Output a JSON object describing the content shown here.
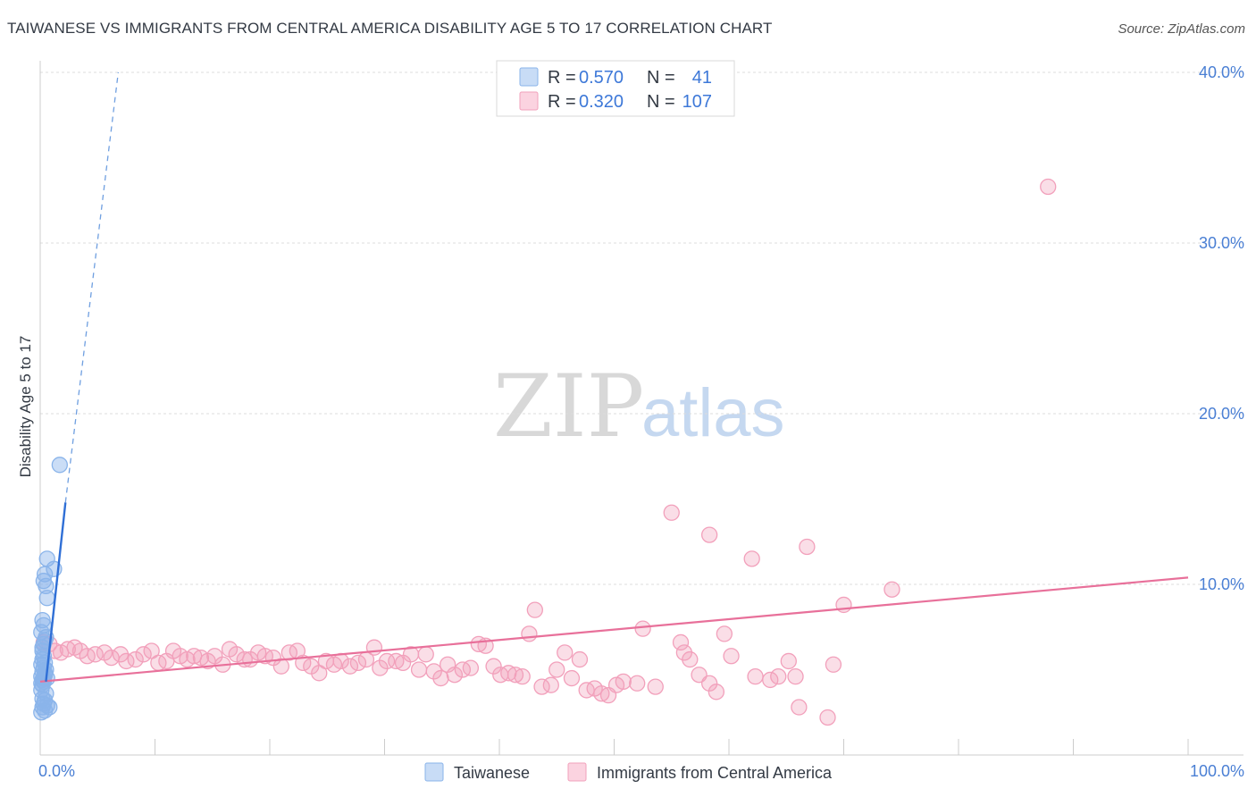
{
  "title": "TAIWANESE VS IMMIGRANTS FROM CENTRAL AMERICA DISABILITY AGE 5 TO 17 CORRELATION CHART",
  "source": "Source: ZipAtlas.com",
  "watermark": {
    "zip": "ZIP",
    "atlas": "atlas"
  },
  "legend": {
    "rows": [
      {
        "r_label": "R =",
        "r_value": "0.570",
        "n_label": "N =",
        "n_value": "41",
        "color": "#8ab4ea"
      },
      {
        "r_label": "R =",
        "r_value": "0.320",
        "n_label": "N =",
        "n_value": "107",
        "color": "#f2a0bb"
      }
    ]
  },
  "chart_data": {
    "type": "scatter",
    "title": "TAIWANESE VS IMMIGRANTS FROM CENTRAL AMERICA DISABILITY AGE 5 TO 17 CORRELATION CHART",
    "xlabel": "",
    "ylabel": "Disability Age 5 to 17",
    "xlim": [
      0,
      100
    ],
    "ylim": [
      0,
      40
    ],
    "x_tick_labels": [
      "0.0%",
      "100.0%"
    ],
    "y_ticks": [
      10,
      20,
      30,
      40
    ],
    "y_tick_labels": [
      "10.0%",
      "20.0%",
      "30.0%",
      "40.0%"
    ],
    "grid": true,
    "series": [
      {
        "name": "Taiwanese",
        "color": "#8ab4ea",
        "line_color": "#2f6fd6",
        "trend": {
          "x0": 0.5,
          "y0": 4.3,
          "x1": 2.2,
          "y1": 14.8,
          "dash_to_x": 6.8,
          "dash_to_y": 40.0
        },
        "points": [
          [
            0.1,
            2.5
          ],
          [
            0.2,
            2.8
          ],
          [
            0.3,
            3.0
          ],
          [
            0.4,
            2.6
          ],
          [
            0.6,
            2.9
          ],
          [
            0.8,
            2.8
          ],
          [
            0.2,
            3.3
          ],
          [
            0.5,
            3.6
          ],
          [
            0.1,
            4.2
          ],
          [
            0.2,
            4.4
          ],
          [
            0.3,
            4.5
          ],
          [
            0.4,
            4.7
          ],
          [
            0.2,
            4.9
          ],
          [
            0.3,
            5.1
          ],
          [
            0.1,
            5.3
          ],
          [
            0.4,
            5.4
          ],
          [
            0.2,
            6.1
          ],
          [
            0.3,
            6.5
          ],
          [
            0.5,
            6.9
          ],
          [
            0.1,
            7.2
          ],
          [
            0.3,
            7.6
          ],
          [
            0.2,
            7.9
          ],
          [
            0.4,
            6.7
          ],
          [
            0.1,
            4.6
          ],
          [
            0.3,
            4.3
          ],
          [
            0.2,
            4.1
          ],
          [
            0.4,
            4.8
          ],
          [
            0.5,
            5.0
          ],
          [
            0.6,
            4.5
          ],
          [
            0.6,
            9.2
          ],
          [
            0.5,
            9.9
          ],
          [
            0.3,
            10.2
          ],
          [
            0.4,
            10.6
          ],
          [
            0.6,
            11.5
          ],
          [
            1.2,
            10.9
          ],
          [
            1.7,
            17.0
          ],
          [
            0.2,
            5.6
          ],
          [
            0.3,
            5.8
          ],
          [
            0.1,
            3.8
          ],
          [
            0.4,
            3.2
          ],
          [
            0.2,
            6.3
          ]
        ]
      },
      {
        "name": "Immigrants from Central America",
        "color": "#f2a0bb",
        "line_color": "#e8709a",
        "trend": {
          "x0": 0,
          "y0": 4.3,
          "x1": 100,
          "y1": 10.4
        },
        "points": [
          [
            0.3,
            6.6
          ],
          [
            0.8,
            6.5
          ],
          [
            1.3,
            6.1
          ],
          [
            1.8,
            6.0
          ],
          [
            2.4,
            6.2
          ],
          [
            3.0,
            6.3
          ],
          [
            3.5,
            6.1
          ],
          [
            4.1,
            5.8
          ],
          [
            4.8,
            5.9
          ],
          [
            5.6,
            6.0
          ],
          [
            6.2,
            5.7
          ],
          [
            7.0,
            5.9
          ],
          [
            7.5,
            5.5
          ],
          [
            8.3,
            5.6
          ],
          [
            9.0,
            5.9
          ],
          [
            9.7,
            6.1
          ],
          [
            10.3,
            5.4
          ],
          [
            11.0,
            5.5
          ],
          [
            11.6,
            6.1
          ],
          [
            12.2,
            5.8
          ],
          [
            12.8,
            5.6
          ],
          [
            13.4,
            5.8
          ],
          [
            14.0,
            5.7
          ],
          [
            14.6,
            5.5
          ],
          [
            15.2,
            5.8
          ],
          [
            15.9,
            5.3
          ],
          [
            16.5,
            6.2
          ],
          [
            17.1,
            5.9
          ],
          [
            17.8,
            5.6
          ],
          [
            18.3,
            5.6
          ],
          [
            19.0,
            6.0
          ],
          [
            19.6,
            5.8
          ],
          [
            20.3,
            5.7
          ],
          [
            21.0,
            5.2
          ],
          [
            21.7,
            6.0
          ],
          [
            22.4,
            6.1
          ],
          [
            22.9,
            5.4
          ],
          [
            23.6,
            5.2
          ],
          [
            24.3,
            4.8
          ],
          [
            24.9,
            5.5
          ],
          [
            25.6,
            5.3
          ],
          [
            26.2,
            5.5
          ],
          [
            27.0,
            5.2
          ],
          [
            27.7,
            5.4
          ],
          [
            28.4,
            5.6
          ],
          [
            29.1,
            6.3
          ],
          [
            29.6,
            5.1
          ],
          [
            30.2,
            5.5
          ],
          [
            31.0,
            5.5
          ],
          [
            31.6,
            5.4
          ],
          [
            32.3,
            5.9
          ],
          [
            33.0,
            5.0
          ],
          [
            33.6,
            5.9
          ],
          [
            34.3,
            4.9
          ],
          [
            34.9,
            4.5
          ],
          [
            35.5,
            5.3
          ],
          [
            36.1,
            4.7
          ],
          [
            36.8,
            5.0
          ],
          [
            37.5,
            5.1
          ],
          [
            38.2,
            6.5
          ],
          [
            38.8,
            6.4
          ],
          [
            39.5,
            5.2
          ],
          [
            40.1,
            4.7
          ],
          [
            40.8,
            4.8
          ],
          [
            41.4,
            4.7
          ],
          [
            42.0,
            4.6
          ],
          [
            42.6,
            7.1
          ],
          [
            43.1,
            8.5
          ],
          [
            43.7,
            4.0
          ],
          [
            44.5,
            4.1
          ],
          [
            45.0,
            5.0
          ],
          [
            45.7,
            6.0
          ],
          [
            46.3,
            4.5
          ],
          [
            47.0,
            5.6
          ],
          [
            47.6,
            3.8
          ],
          [
            48.3,
            3.9
          ],
          [
            48.9,
            3.6
          ],
          [
            49.5,
            3.5
          ],
          [
            50.2,
            4.1
          ],
          [
            50.8,
            4.3
          ],
          [
            52.0,
            4.2
          ],
          [
            53.6,
            4.0
          ],
          [
            52.5,
            7.4
          ],
          [
            55.8,
            6.6
          ],
          [
            56.1,
            6.0
          ],
          [
            56.6,
            5.6
          ],
          [
            57.4,
            4.7
          ],
          [
            58.3,
            4.2
          ],
          [
            58.9,
            3.7
          ],
          [
            59.6,
            7.1
          ],
          [
            60.2,
            5.8
          ],
          [
            62.3,
            4.6
          ],
          [
            63.6,
            4.4
          ],
          [
            64.3,
            4.6
          ],
          [
            65.2,
            5.5
          ],
          [
            65.8,
            4.6
          ],
          [
            69.1,
            5.3
          ],
          [
            66.1,
            2.8
          ],
          [
            68.6,
            2.2
          ],
          [
            55.0,
            14.2
          ],
          [
            62.0,
            11.5
          ],
          [
            66.8,
            12.2
          ],
          [
            58.3,
            12.9
          ],
          [
            74.2,
            9.7
          ],
          [
            70.0,
            8.8
          ],
          [
            87.8,
            33.3
          ]
        ]
      }
    ]
  },
  "bottom_legend": [
    {
      "label": "Taiwanese",
      "color": "#8ab4ea"
    },
    {
      "label": "Immigrants from Central America",
      "color": "#f2a0bb"
    }
  ]
}
